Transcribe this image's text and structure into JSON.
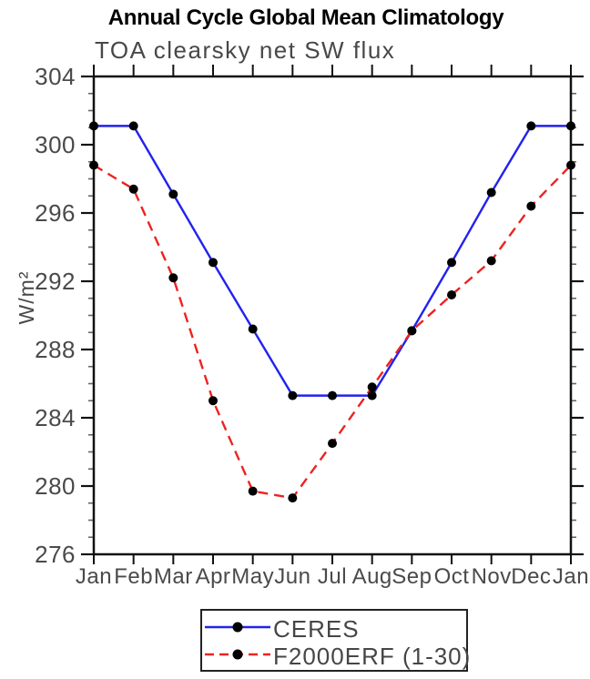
{
  "chart_data": {
    "type": "line",
    "title": "Annual Cycle Global Mean Climatology",
    "subtitle": "TOA clearsky net SW flux",
    "xlabel": "",
    "ylabel": "W/m²",
    "categories": [
      "Jan",
      "Feb",
      "Mar",
      "Apr",
      "May",
      "Jun",
      "Jul",
      "Aug",
      "Sep",
      "Oct",
      "Nov",
      "Dec",
      "Jan"
    ],
    "ylim": [
      276,
      304
    ],
    "yticks": [
      276,
      280,
      284,
      288,
      292,
      296,
      300,
      304
    ],
    "y_minor_interval": 1,
    "grid": false,
    "legend_position": "bottom-center",
    "axis_color": "#111111",
    "minor_tick_color": "#666666",
    "marker_color": "#000000",
    "series": [
      {
        "name": "CERES",
        "line_color": "#2222ee",
        "line_style": "solid",
        "marker": "filled-circle",
        "values": [
          301.1,
          301.1,
          297.1,
          293.1,
          289.2,
          285.3,
          285.3,
          285.3,
          289.1,
          293.1,
          297.2,
          301.1,
          301.1
        ]
      },
      {
        "name": "F2000ERF (1-30)",
        "line_color": "#ee2222",
        "line_style": "dashed",
        "marker": "filled-circle",
        "values": [
          298.8,
          297.4,
          292.2,
          285.0,
          279.7,
          279.3,
          282.5,
          285.8,
          289.1,
          291.2,
          293.2,
          296.4,
          298.8
        ]
      }
    ]
  }
}
